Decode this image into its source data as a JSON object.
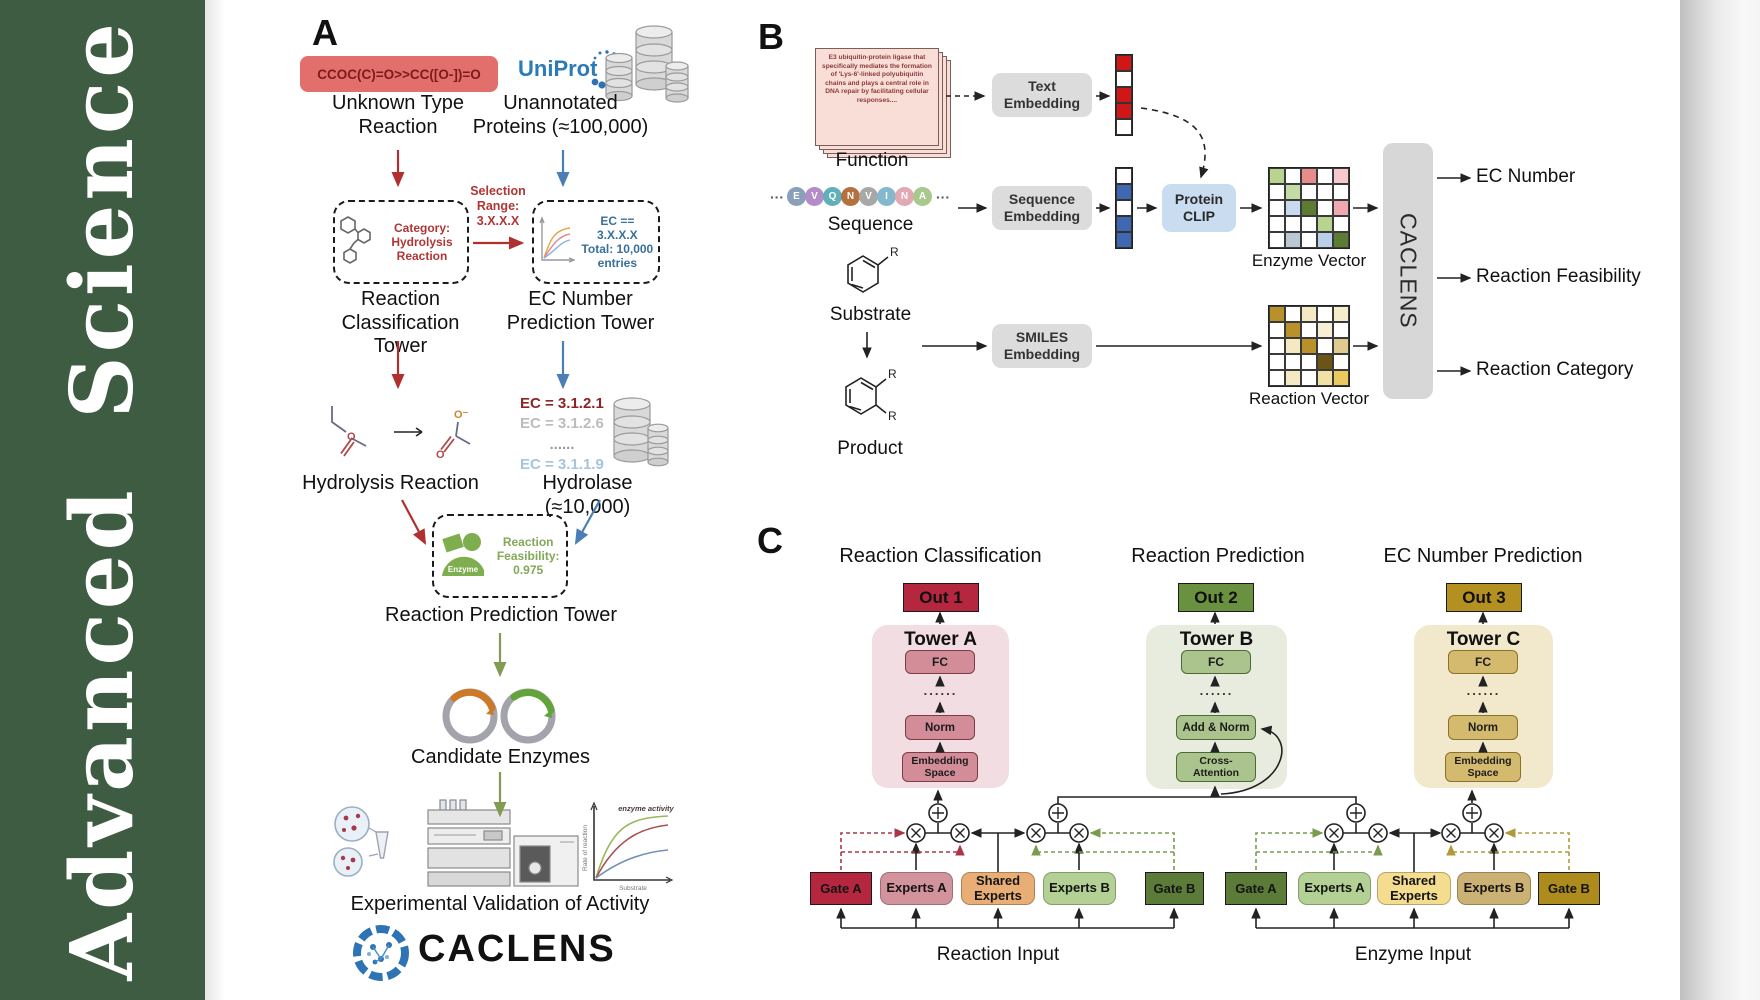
{
  "journal": {
    "name": "Advanced  Science"
  },
  "colors": {
    "sidebar_green": "#3d5c41",
    "arrow_red": "#b03030",
    "arrow_blue": "#4a7fb5",
    "arrow_green": "#7f9c52",
    "smiles_pill": "#e26f6b",
    "gray_box": "#dcdcdc",
    "protein_clip": "#c9dcf0",
    "out1_red": "#b4273f",
    "out2_green": "#6a9140",
    "out3_gold": "#b3901f"
  },
  "panelA": {
    "label": "A",
    "smiles": "CCOC(C)=O>>CC([O-])=O",
    "unknown_reaction": "Unknown Type\nReaction",
    "uniprot": "UniProt",
    "unannotated_proteins": "Unannotated\nProteins (≈100,000)",
    "category_box": "Category:\nHydrolysis\nReaction",
    "selection_range": "Selection\nRange:\n3.X.X.X",
    "ec_box": "EC == 3.X.X.X\nTotal: 10,000\nentries",
    "classification_tower": "Reaction\nClassification Tower",
    "ec_tower": "EC Number\nPrediction Tower",
    "hydrolysis_reaction": "Hydrolysis Reaction",
    "ec_list": [
      {
        "text": "EC = 3.1.2.1",
        "color": "#8c2525"
      },
      {
        "text": "EC = 3.1.2.6",
        "color": "#bcbcbc"
      },
      {
        "text": "......",
        "color": "#9a9a9a"
      },
      {
        "text": "EC = 3.1.1.9",
        "color": "#a7c4de"
      }
    ],
    "hydrolase": "Hydrolase (≈10,000)",
    "enzyme_label": "Enzyme",
    "feasibility": "Reaction\nFeasibility:\n0.975",
    "prediction_tower": "Reaction Prediction Tower",
    "candidate_enzymes": "Candidate Enzymes",
    "activity_plot": {
      "ylabel": "Rate of reaction",
      "xlabel": "Substrate",
      "annotation": "enzyme activity"
    },
    "validation": "Experimental Validation of Activity",
    "wordmark": "CACLENS"
  },
  "panelB": {
    "label": "B",
    "function_card": "E3 ubiquitin-protein ligase that specifically mediates the formation of 'Lys-6'-linked polyubiquitin chains and plays a central role in DNA repair by facilitating cellular responses....",
    "function_label": "Function",
    "ellipsis": "···",
    "sequence": {
      "letters": [
        "E",
        "V",
        "Q",
        "N",
        "V",
        "I",
        "N",
        "A"
      ],
      "colors": [
        "#8aa0b8",
        "#b48cc8",
        "#5fb0b8",
        "#b5713d",
        "#a8a8a8",
        "#84b8cc",
        "#e2a8b4",
        "#a8c88e"
      ]
    },
    "sequence_label": "Sequence",
    "substrate_label": "Substrate",
    "product_label": "Product",
    "r_group": "R",
    "text_embedding": "Text\nEmbedding",
    "sequence_embedding": "Sequence\nEmbedding",
    "smiles_embedding": "SMILES\nEmbedding",
    "protein_clip": "Protein\nCLIP",
    "text_vector_cells": [
      "#cf1717",
      "#ffffff",
      "#cf1717",
      "#cf1717",
      "#ffffff"
    ],
    "sequence_vector_cells": [
      "#ffffff",
      "#3f68b0",
      "#ffffff",
      "#3f68b0",
      "#3f68b0"
    ],
    "enzyme_vector": {
      "label": "Enzyme Vector",
      "cells": [
        [
          "#b9d48f",
          "#ffffff",
          "#e88b8b",
          "#ffffff",
          "#f6c9ce"
        ],
        [
          "#ffffff",
          "#c3dca6",
          "#ffffff",
          "#ffffff",
          "#ffffff"
        ],
        [
          "#ffffff",
          "#c9daee",
          "#5c7c33",
          "#ffffff",
          "#f0a9b1"
        ],
        [
          "#ffffff",
          "#ffffff",
          "#ffffff",
          "#b9d48f",
          "#ffffff"
        ],
        [
          "#ffffff",
          "#bac7d5",
          "#ffffff",
          "#bad0e8",
          "#5c7c33"
        ]
      ]
    },
    "reaction_vector": {
      "label": "Reaction Vector",
      "cells": [
        [
          "#b8912a",
          "#ffffff",
          "#f4e9c3",
          "#ffffff",
          "#f6eecb"
        ],
        [
          "#ffffff",
          "#b8912a",
          "#ffffff",
          "#f7efd4",
          "#ffffff"
        ],
        [
          "#ffffff",
          "#f4e9c3",
          "#b8912a",
          "#ffffff",
          "#dfcb8f"
        ],
        [
          "#ffffff",
          "#ffffff",
          "#ffffff",
          "#6b5416",
          "#ffffff"
        ],
        [
          "#ffffff",
          "#f4e9c3",
          "#ffffff",
          "#f1e1a4",
          "#eaca5e"
        ]
      ]
    },
    "caclens_bar": "CACLENS",
    "outputs": [
      "EC Number",
      "Reaction Feasibility",
      "Reaction Category"
    ]
  },
  "panelC": {
    "label": "C",
    "columns": [
      {
        "heading": "Reaction Classification",
        "out": "Out 1",
        "tower": "Tower A",
        "fc": "FC",
        "dots": "......",
        "mid": "Norm",
        "base": "Embedding\nSpace"
      },
      {
        "heading": "Reaction Prediction",
        "out": "Out 2",
        "tower": "Tower B",
        "fc": "FC",
        "dots": "......",
        "mid": "Add & Norm",
        "base": "Cross-\nAttention"
      },
      {
        "heading": "EC Number Prediction",
        "out": "Out 3",
        "tower": "Tower C",
        "fc": "FC",
        "dots": "......",
        "mid": "Norm",
        "base": "Embedding\nSpace"
      }
    ],
    "moe": [
      {
        "gate_a": "Gate A",
        "experts_a": "Experts A",
        "shared": "Shared\nExperts",
        "experts_b": "Experts B",
        "gate_b": "Gate B",
        "input": "Reaction Input"
      },
      {
        "gate_a": "Gate A",
        "experts_a": "Experts A",
        "shared": "Shared\nExperts",
        "experts_b": "Experts B",
        "gate_b": "Gate B",
        "input": "Enzyme Input"
      }
    ]
  }
}
